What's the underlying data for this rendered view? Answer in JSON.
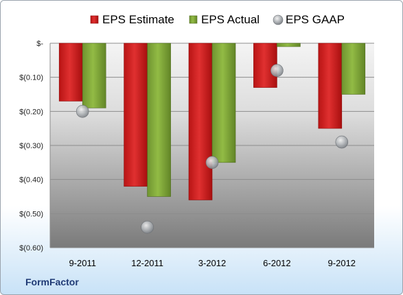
{
  "chart_data": {
    "type": "bar",
    "categories": [
      "9-2011",
      "12-2011",
      "3-2012",
      "6-2012",
      "9-2012"
    ],
    "series": [
      {
        "name": "EPS Estimate",
        "kind": "bar",
        "color": "#d42020",
        "values": [
          -0.17,
          -0.42,
          -0.46,
          -0.13,
          -0.25
        ]
      },
      {
        "name": "EPS Actual",
        "kind": "bar",
        "color": "#86ae3a",
        "values": [
          -0.19,
          -0.45,
          -0.35,
          -0.01,
          -0.15
        ]
      },
      {
        "name": "EPS GAAP",
        "kind": "marker",
        "color": "#a8acb0",
        "values": [
          -0.2,
          -0.54,
          -0.35,
          -0.08,
          -0.29
        ]
      }
    ],
    "yticks": [
      0,
      -0.1,
      -0.2,
      -0.3,
      -0.4,
      -0.5,
      -0.6
    ],
    "ytick_labels": [
      "$-",
      "$(0.10)",
      "$(0.20)",
      "$(0.30)",
      "$(0.40)",
      "$(0.50)",
      "$(0.60)"
    ],
    "ylim": [
      -0.6,
      0
    ],
    "legend_position": "top",
    "grid": true
  },
  "company": "FormFactor"
}
